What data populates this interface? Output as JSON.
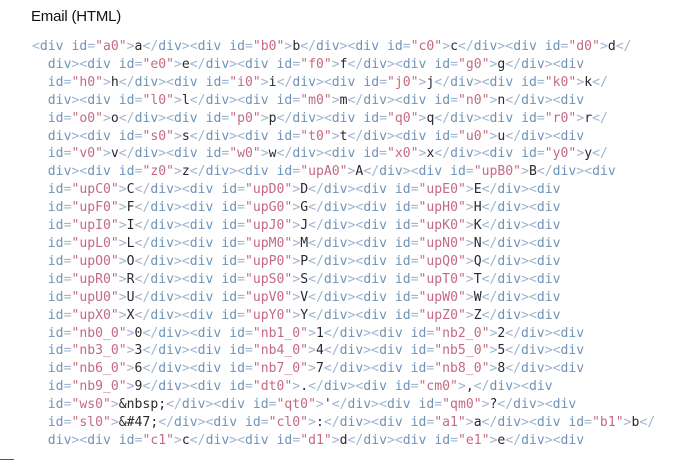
{
  "header": {
    "title": "Email (HTML)"
  },
  "code": {
    "lines": [
      "<div id=\"a0\">a</div><div id=\"b0\">b</div><div id=\"c0\">c</div><div id=\"d0\">d</",
      "div><div id=\"e0\">e</div><div id=\"f0\">f</div><div id=\"g0\">g</div><div",
      "id=\"h0\">h</div><div id=\"i0\">i</div><div id=\"j0\">j</div><div id=\"k0\">k</",
      "div><div id=\"l0\">l</div><div id=\"m0\">m</div><div id=\"n0\">n</div><div",
      "id=\"o0\">o</div><div id=\"p0\">p</div><div id=\"q0\">q</div><div id=\"r0\">r</",
      "div><div id=\"s0\">s</div><div id=\"t0\">t</div><div id=\"u0\">u</div><div",
      "id=\"v0\">v</div><div id=\"w0\">w</div><div id=\"x0\">x</div><div id=\"y0\">y</",
      "div><div id=\"z0\">z</div><div id=\"upA0\">A</div><div id=\"upB0\">B</div><div",
      "id=\"upC0\">C</div><div id=\"upD0\">D</div><div id=\"upE0\">E</div><div",
      "id=\"upF0\">F</div><div id=\"upG0\">G</div><div id=\"upH0\">H</div><div",
      "id=\"upI0\">I</div><div id=\"upJ0\">J</div><div id=\"upK0\">K</div><div",
      "id=\"upL0\">L</div><div id=\"upM0\">M</div><div id=\"upN0\">N</div><div",
      "id=\"upO0\">O</div><div id=\"upP0\">P</div><div id=\"upQ0\">Q</div><div",
      "id=\"upR0\">R</div><div id=\"upS0\">S</div><div id=\"upT0\">T</div><div",
      "id=\"upU0\">U</div><div id=\"upV0\">V</div><div id=\"upW0\">W</div><div",
      "id=\"upX0\">X</div><div id=\"upY0\">Y</div><div id=\"upZ0\">Z</div><div",
      "id=\"nb0_0\">0</div><div id=\"nb1_0\">1</div><div id=\"nb2_0\">2</div><div",
      "id=\"nb3_0\">3</div><div id=\"nb4_0\">4</div><div id=\"nb5_0\">5</div><div",
      "id=\"nb6_0\">6</div><div id=\"nb7_0\">7</div><div id=\"nb8_0\">8</div><div",
      "id=\"nb9_0\">9</div><div id=\"dt0\">.</div><div id=\"cm0\">,</div><div",
      "id=\"ws0\">&nbsp;</div><div id=\"qt0\">'</div><div id=\"qm0\">?</div><div",
      "id=\"sl0\">&#47;</div><div id=\"cl0\">:</div><div id=\"a1\">a</div><div id=\"b1\">b</",
      "div><div id=\"c1\">c</div><div id=\"d1\">d</div><div id=\"e1\">e</div><div"
    ]
  }
}
